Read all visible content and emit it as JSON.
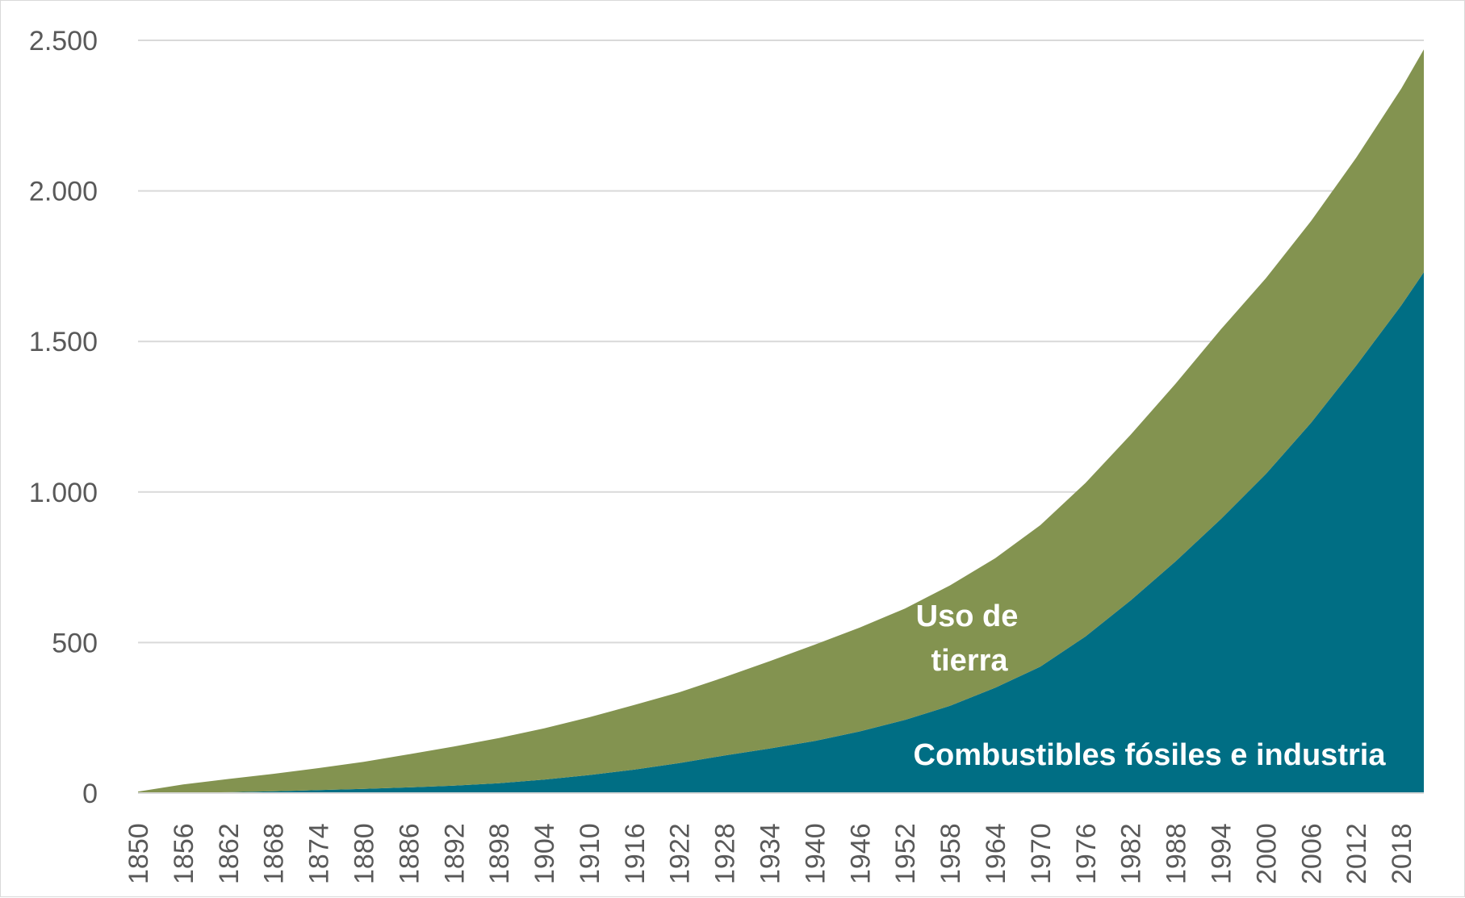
{
  "chart_data": {
    "type": "area",
    "stacked": true,
    "title": "",
    "xlabel": "",
    "ylabel": "",
    "ylim": [
      0,
      2500
    ],
    "yticks": [
      0,
      500,
      1000,
      1500,
      2000,
      2500
    ],
    "ytick_labels": [
      "0",
      "500",
      "1.000",
      "1.500",
      "2.000",
      "2.500"
    ],
    "xlim": [
      1850,
      2021
    ],
    "xticks": [
      1850,
      1856,
      1862,
      1868,
      1874,
      1880,
      1886,
      1892,
      1898,
      1904,
      1910,
      1916,
      1922,
      1928,
      1934,
      1940,
      1946,
      1952,
      1958,
      1964,
      1970,
      1976,
      1982,
      1988,
      1994,
      2000,
      2006,
      2012,
      2018
    ],
    "grid": true,
    "legend": "none",
    "x": [
      1850,
      1856,
      1862,
      1868,
      1874,
      1880,
      1886,
      1892,
      1898,
      1904,
      1910,
      1916,
      1922,
      1928,
      1934,
      1940,
      1946,
      1952,
      1958,
      1964,
      1970,
      1976,
      1982,
      1988,
      1994,
      2000,
      2006,
      2012,
      2018,
      2021
    ],
    "series": [
      {
        "name": "Combustibles fósiles e industria",
        "color": "#006E84",
        "values": [
          0,
          1,
          3,
          6,
          10,
          14,
          19,
          25,
          33,
          45,
          60,
          78,
          100,
          125,
          148,
          173,
          205,
          243,
          290,
          350,
          420,
          520,
          640,
          770,
          910,
          1060,
          1230,
          1420,
          1620,
          1730
        ]
      },
      {
        "name": "Uso de tierra",
        "color": "#839350",
        "values": [
          5,
          28,
          44,
          58,
          73,
          90,
          110,
          130,
          150,
          170,
          192,
          215,
          235,
          260,
          290,
          320,
          345,
          370,
          400,
          430,
          470,
          510,
          550,
          590,
          630,
          650,
          670,
          690,
          720,
          740
        ]
      }
    ],
    "annotations": {
      "land_use_line1": "Uso de",
      "land_use_line2": "tierra",
      "fossil": "Combustibles fósiles e industria"
    }
  }
}
